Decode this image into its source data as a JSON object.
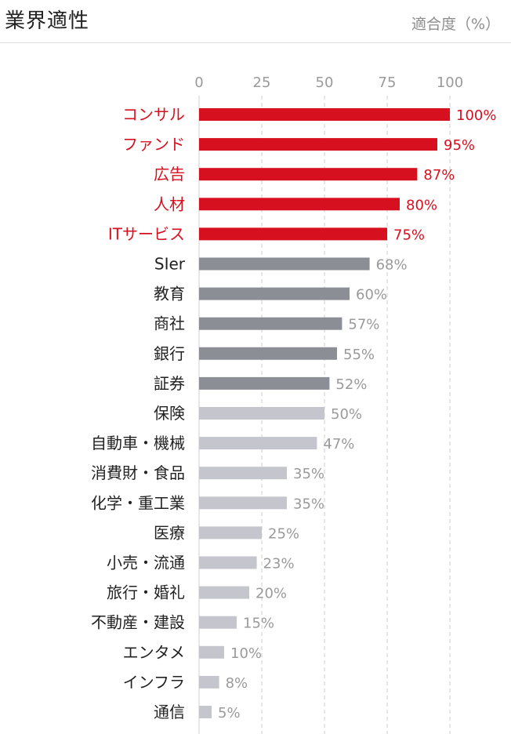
{
  "header": {
    "title": "業界適性",
    "unit_label": "適合度（%）"
  },
  "colors": {
    "top": "#d7101f",
    "mid": "#8c8e96",
    "low": "#c5c6cd",
    "grid": "#cccccc",
    "label_default": "#222222",
    "value_default": "#9a9a9a"
  },
  "chart_data": {
    "type": "bar",
    "orientation": "horizontal",
    "title": "業界適性",
    "xlabel": "適合度（%）",
    "xlim": [
      0,
      100
    ],
    "xticks": [
      0,
      25,
      50,
      75,
      100
    ],
    "grid": true,
    "categories": [
      "コンサル",
      "ファンド",
      "広告",
      "人材",
      "ITサービス",
      "SIer",
      "教育",
      "商社",
      "銀行",
      "証券",
      "保険",
      "自動車・機械",
      "消費財・食品",
      "化学・重工業",
      "医療",
      "小売・流通",
      "旅行・婚礼",
      "不動産・建設",
      "エンタメ",
      "インフラ",
      "通信"
    ],
    "values": [
      100,
      95,
      87,
      80,
      75,
      68,
      60,
      57,
      55,
      52,
      50,
      47,
      35,
      35,
      25,
      23,
      20,
      15,
      10,
      8,
      5
    ],
    "value_labels": [
      "100%",
      "95%",
      "87%",
      "80%",
      "75%",
      "68%",
      "60%",
      "57%",
      "55%",
      "52%",
      "50%",
      "47%",
      "35%",
      "35%",
      "25%",
      "23%",
      "20%",
      "15%",
      "10%",
      "8%",
      "5%"
    ],
    "tiers": [
      "top",
      "top",
      "top",
      "top",
      "top",
      "mid",
      "mid",
      "mid",
      "mid",
      "mid",
      "low",
      "low",
      "low",
      "low",
      "low",
      "low",
      "low",
      "low",
      "low",
      "low",
      "low"
    ]
  }
}
